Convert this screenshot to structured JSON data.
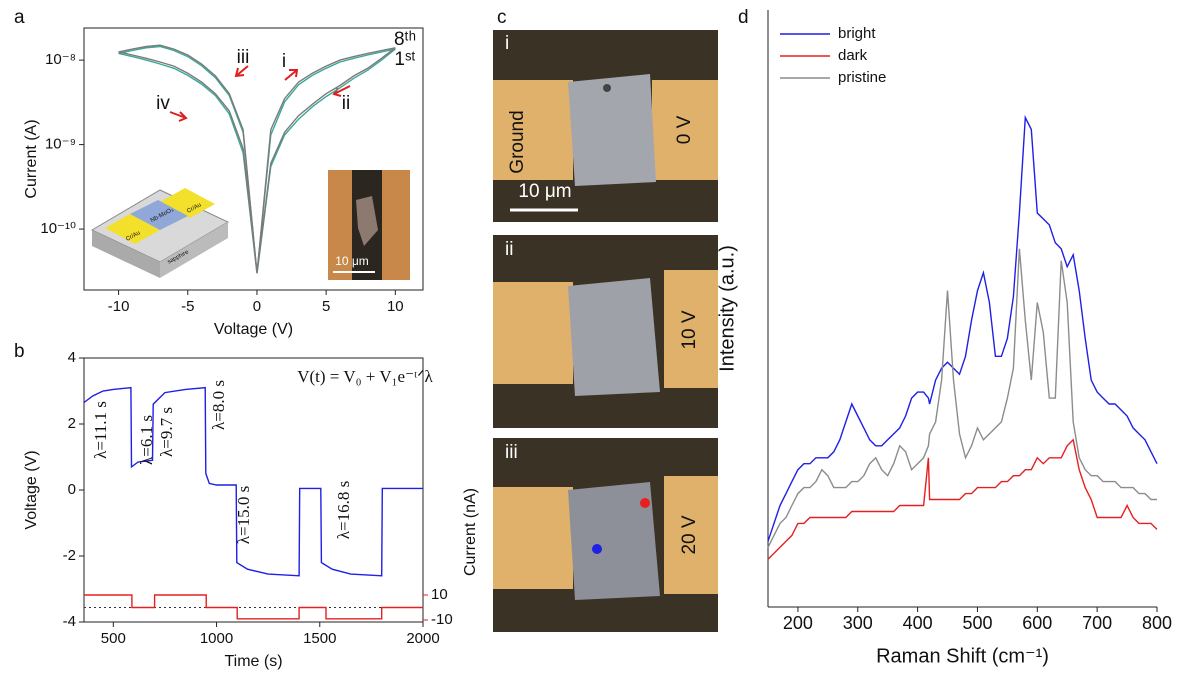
{
  "chart_data": [
    {
      "type": "line",
      "panel_label": "a",
      "xlabel": "Voltage (V)",
      "ylabel": "Current (A)",
      "log_y": true,
      "xlim": [
        -12.5,
        12
      ],
      "xticks": [
        -10,
        -5,
        0,
        5,
        10
      ],
      "ylim": [
        1.9e-11,
        2.4e-08
      ],
      "yticks": [
        {
          "value": 1e-10,
          "label": "10⁻¹⁰"
        },
        {
          "value": 1e-09,
          "label": "10⁻⁹"
        },
        {
          "value": 1e-08,
          "label": "10⁻⁸"
        }
      ],
      "x": [
        0,
        1,
        2,
        3,
        4,
        5,
        6,
        7,
        8,
        9,
        10,
        9,
        8,
        7,
        6,
        5,
        4,
        3,
        2,
        1,
        0,
        -1,
        -2,
        -3,
        -4,
        -5,
        -6,
        -7,
        -8,
        -9,
        -10,
        -9,
        -8,
        -7,
        -6,
        -5,
        -4,
        -3,
        -2,
        -1,
        0
      ],
      "series": [
        {
          "color": "#3aa89a",
          "values": [
            3e-11,
            1.3e-09,
            3.2e-09,
            5.1e-09,
            6.6e-09,
            8e-09,
            9.5e-09,
            1.05e-08,
            1.15e-08,
            1.25e-08,
            1.35e-08,
            1e-08,
            7.6e-09,
            6.1e-09,
            4.7e-09,
            3.7e-09,
            2.8e-09,
            2e-09,
            1.3e-09,
            5.5e-10,
            3e-11,
            8e-10,
            2.3e-09,
            3.8e-09,
            5.2e-09,
            6.6e-09,
            8e-09,
            9e-09,
            1e-08,
            1.1e-08,
            1.2e-08,
            1.3e-08,
            1.4e-08,
            1.45e-08,
            1.3e-08,
            1.1e-08,
            8.6e-09,
            6.2e-09,
            3.8e-09,
            1.4e-09,
            3e-11
          ]
        },
        {
          "color": "#7a7a7a",
          "values": [
            3e-11,
            1.5e-09,
            3.5e-09,
            5.5e-09,
            7e-09,
            8.5e-09,
            1e-08,
            1.1e-08,
            1.2e-08,
            1.3e-08,
            1.4e-08,
            1.05e-08,
            8e-09,
            6.5e-09,
            5e-09,
            4e-09,
            3e-09,
            2.2e-09,
            1.4e-09,
            6e-10,
            3e-11,
            9e-10,
            2.5e-09,
            4e-09,
            5.5e-09,
            7e-09,
            8.5e-09,
            9.5e-09,
            1.05e-08,
            1.15e-08,
            1.25e-08,
            1.35e-08,
            1.45e-08,
            1.5e-08,
            1.35e-08,
            1.15e-08,
            9e-09,
            6.5e-09,
            4e-09,
            1.5e-09,
            3e-11
          ]
        }
      ],
      "annotations": [
        "i",
        "ii",
        "iii",
        "iv",
        "8ᵗʰ",
        "1ˢᵗ",
        "Cr/Au",
        "Cr/Au",
        "Nb-MoO₃",
        "sapphire",
        "10 μm"
      ]
    },
    {
      "type": "line",
      "panel_label": "b",
      "xlabel": "Time (s)",
      "ylabel": "Voltage (V)",
      "y2label": "Current (nA)",
      "xlim": [
        358,
        2000
      ],
      "xticks": [
        500,
        1000,
        1500,
        2000
      ],
      "ylim": [
        -4,
        4
      ],
      "yticks": [
        -4,
        -2,
        0,
        2,
        4
      ],
      "y2lim": [
        -11.6,
        199.6
      ],
      "y2ticks": [
        -10,
        10
      ],
      "y2_refline": 0,
      "series": [
        {
          "color": "#1f1fe6",
          "x": [
            358,
            400,
            450,
            500,
            585,
            588,
            620,
            690,
            693,
            750,
            850,
            945,
            948,
            965,
            1000,
            1095,
            1098,
            1150,
            1250,
            1400,
            1403,
            1505,
            1508,
            1560,
            1650,
            1800,
            1803,
            2000
          ],
          "values": [
            2.65,
            2.85,
            3.0,
            3.05,
            3.1,
            0.7,
            0.85,
            0.9,
            2.6,
            2.95,
            3.05,
            3.1,
            0.5,
            0.2,
            0.15,
            0.15,
            -2.2,
            -2.4,
            -2.55,
            -2.6,
            0.05,
            0.05,
            -2.2,
            -2.4,
            -2.55,
            -2.6,
            0.05,
            0.05
          ]
        },
        {
          "color": "#e62020",
          "axis": "y2",
          "x": [
            358,
            590,
            590,
            700,
            700,
            950,
            950,
            1100,
            1100,
            1400,
            1400,
            1530,
            1530,
            1800,
            1800,
            2000
          ],
          "values": [
            10,
            10,
            0,
            0,
            10,
            10,
            0,
            0,
            -9,
            -9,
            0,
            0,
            -9,
            -9,
            0,
            0
          ]
        }
      ],
      "annotations": [
        "λ=11.1 s",
        "λ=6.1 s",
        "λ=9.7 s",
        "λ=8.0 s",
        "λ=15.0 s",
        "λ=16.8 s",
        "V(t) = V₀ + V₁e⁻ᵗᐟλ"
      ]
    },
    {
      "type": "line",
      "panel_label": "d",
      "xlabel": "Raman Shift (cm⁻¹)",
      "ylabel": "Intensity (a.u.)",
      "legend": "upper left",
      "xlim": [
        150,
        800
      ],
      "xticks": [
        200,
        300,
        400,
        500,
        600,
        700,
        800
      ],
      "ylim": [
        0,
        100
      ],
      "x": [
        150,
        160,
        170,
        180,
        190,
        200,
        210,
        220,
        230,
        240,
        250,
        260,
        270,
        280,
        290,
        300,
        310,
        320,
        330,
        340,
        350,
        360,
        370,
        380,
        390,
        400,
        410,
        418,
        420,
        430,
        440,
        450,
        460,
        470,
        480,
        490,
        500,
        510,
        520,
        530,
        540,
        550,
        560,
        570,
        580,
        590,
        600,
        610,
        620,
        630,
        640,
        650,
        660,
        670,
        680,
        690,
        700,
        710,
        720,
        730,
        740,
        750,
        760,
        770,
        780,
        790,
        800
      ],
      "series": [
        {
          "name": "bright",
          "color": "#1f1fe6",
          "values": [
            11,
            14,
            17,
            19,
            21,
            23,
            24,
            24,
            25,
            25,
            25,
            26,
            28,
            31,
            34,
            32,
            30,
            28,
            27,
            27,
            28,
            29,
            30,
            32,
            35,
            36,
            36,
            35,
            34,
            38,
            40,
            41,
            40,
            39,
            42,
            48,
            53,
            56,
            51,
            42,
            42,
            45,
            52,
            66,
            82,
            80,
            66,
            65,
            64,
            61,
            60,
            57,
            59,
            53,
            45,
            38,
            36,
            35,
            34,
            34,
            33,
            32,
            30,
            29,
            28,
            26,
            24
          ]
        },
        {
          "name": "dark",
          "color": "#e62020",
          "values": [
            8,
            9,
            10,
            11,
            12,
            14,
            14,
            15,
            15,
            15,
            15,
            15,
            15,
            15,
            16,
            16,
            16,
            16,
            16,
            16,
            16,
            16,
            17,
            17,
            17,
            17,
            17,
            25,
            18,
            18,
            18,
            18,
            18,
            18,
            19,
            19,
            20,
            20,
            20,
            20,
            21,
            21,
            22,
            22,
            23,
            23,
            25,
            24,
            25,
            25,
            25,
            27,
            28,
            23,
            20,
            18,
            15,
            15,
            15,
            15,
            15,
            17,
            15,
            14,
            14,
            14,
            13
          ]
        },
        {
          "name": "pristine",
          "color": "#8c8c8c",
          "values": [
            10,
            12,
            14,
            15,
            17,
            19,
            20,
            20,
            21,
            23,
            22,
            20,
            20,
            20,
            21,
            21,
            22,
            24,
            25,
            23,
            22,
            24,
            27,
            26,
            23,
            24,
            25,
            27,
            29,
            31,
            38,
            53,
            38,
            29,
            25,
            27,
            30,
            28,
            29,
            30,
            31,
            35,
            40,
            60,
            48,
            38,
            51,
            46,
            35,
            35,
            58,
            51,
            31,
            25,
            23,
            22,
            22,
            21,
            21,
            21,
            20,
            20,
            20,
            19,
            19,
            18,
            18
          ]
        }
      ]
    }
  ],
  "image_panel": {
    "label": "c",
    "frames": [
      {
        "label": "i",
        "left": "Ground",
        "right": "0 V",
        "scale": "10 μm"
      },
      {
        "label": "ii",
        "right": "10 V"
      },
      {
        "label": "iii",
        "right": "20 V"
      }
    ]
  }
}
